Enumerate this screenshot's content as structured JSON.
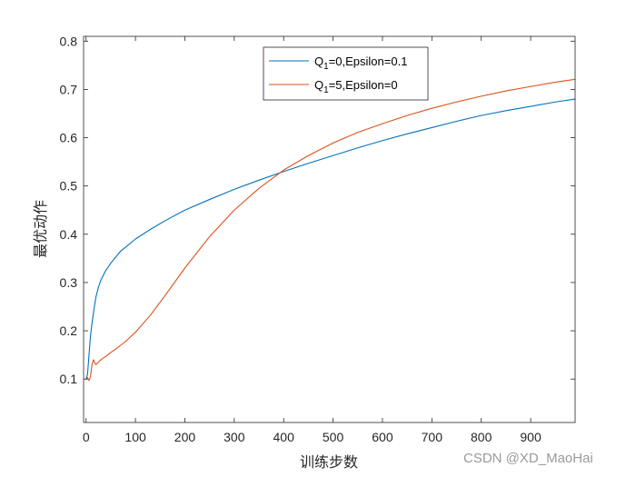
{
  "chart_data": {
    "type": "line",
    "title": "",
    "xlabel": "训练步数",
    "ylabel": "最优动作",
    "xlim": [
      -5,
      990
    ],
    "ylim": [
      0.01,
      0.81
    ],
    "xticks": [
      0,
      100,
      200,
      300,
      400,
      500,
      600,
      700,
      800,
      900
    ],
    "yticks": [
      0.1,
      0.2,
      0.3,
      0.4,
      0.5,
      0.6,
      0.7,
      0.8
    ],
    "grid": false,
    "legend": {
      "position": "top-center"
    },
    "series": [
      {
        "label_main": "Q",
        "label_sub": "1",
        "label_rest": "=0,Epsilon=0.1",
        "color": "#0072BD",
        "x": [
          0,
          3,
          6,
          9,
          12,
          16,
          20,
          25,
          30,
          40,
          50,
          70,
          100,
          130,
          160,
          200,
          250,
          300,
          350,
          400,
          450,
          500,
          550,
          600,
          650,
          700,
          750,
          800,
          850,
          900,
          950,
          990
        ],
        "y": [
          0.1,
          0.11,
          0.15,
          0.19,
          0.215,
          0.245,
          0.27,
          0.29,
          0.305,
          0.325,
          0.34,
          0.365,
          0.39,
          0.41,
          0.428,
          0.45,
          0.472,
          0.493,
          0.512,
          0.53,
          0.547,
          0.563,
          0.579,
          0.594,
          0.608,
          0.621,
          0.634,
          0.646,
          0.656,
          0.665,
          0.674,
          0.68
        ]
      },
      {
        "label_main": "Q",
        "label_sub": "1",
        "label_rest": "=5,Epsilon=0",
        "color": "#D95319",
        "x": [
          0,
          3,
          6,
          9,
          12,
          15,
          18,
          20,
          25,
          30,
          40,
          50,
          60,
          70,
          80,
          100,
          130,
          160,
          200,
          250,
          300,
          350,
          400,
          450,
          500,
          550,
          600,
          650,
          700,
          750,
          800,
          850,
          900,
          950,
          990
        ],
        "y": [
          0.1,
          0.103,
          0.097,
          0.105,
          0.13,
          0.14,
          0.133,
          0.13,
          0.135,
          0.14,
          0.147,
          0.155,
          0.162,
          0.17,
          0.178,
          0.197,
          0.232,
          0.273,
          0.33,
          0.395,
          0.45,
          0.495,
          0.533,
          0.563,
          0.589,
          0.611,
          0.629,
          0.646,
          0.661,
          0.674,
          0.686,
          0.697,
          0.706,
          0.715,
          0.721
        ]
      }
    ]
  },
  "watermark": "CSDN @XD_MaoHai"
}
